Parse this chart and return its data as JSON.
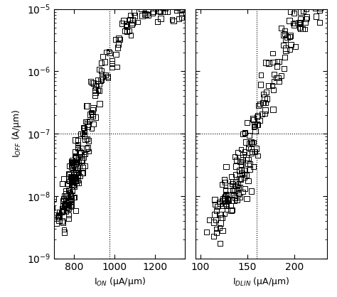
{
  "left_x_label": "I$_{ON}$ (μA/μm)",
  "right_x_label": "I$_{DLIN}$ (μA/μm)",
  "y_label": "I$_{OFF}$ (A/μm)",
  "left_xlim": [
    700,
    1350
  ],
  "right_xlim": [
    95,
    235
  ],
  "ylim": [
    1e-09,
    1e-05
  ],
  "left_hline": 1e-07,
  "left_vline": 975,
  "right_hline": 1e-07,
  "right_vline": 160,
  "background_color": "#ffffff",
  "left_x_ticks": [
    800,
    1000,
    1200
  ],
  "right_x_ticks": [
    100,
    150,
    200
  ],
  "left_data_x": [
    720,
    730,
    735,
    740,
    745,
    750,
    752,
    755,
    757,
    758,
    760,
    762,
    764,
    765,
    767,
    768,
    770,
    772,
    774,
    776,
    778,
    780,
    782,
    784,
    786,
    788,
    790,
    792,
    794,
    796,
    798,
    800,
    802,
    804,
    806,
    808,
    810,
    812,
    814,
    816,
    818,
    820,
    822,
    824,
    826,
    828,
    830,
    833,
    836,
    840,
    844,
    848,
    852,
    856,
    860,
    865,
    870,
    876,
    882,
    888,
    895,
    902,
    910,
    918,
    928,
    938,
    948,
    960,
    972,
    984,
    998,
    1012,
    1026,
    1040,
    1055,
    1070,
    1086,
    1102,
    1118,
    1135,
    1152,
    1170,
    1188,
    1206,
    1224,
    1242,
    1260,
    1278,
    1296,
    1310,
    1322,
    1330,
    1338
  ],
  "left_data_y": [
    3.5e-09,
    4e-09,
    4.5e-09,
    5e-09,
    5.5e-09,
    6e-09,
    5.5e-09,
    6.5e-09,
    7e-09,
    6.5e-09,
    7.2e-09,
    7.8e-09,
    8.2e-09,
    8.8e-09,
    9.2e-09,
    9.8e-09,
    1e-08,
    1.1e-08,
    1.15e-08,
    1.2e-08,
    1.3e-08,
    1.35e-08,
    1.4e-08,
    1.5e-08,
    1.55e-08,
    1.6e-08,
    1.7e-08,
    1.75e-08,
    1.8e-08,
    1.9e-08,
    2e-08,
    2.1e-08,
    2.2e-08,
    2.3e-08,
    2.4e-08,
    2.5e-08,
    2.6e-08,
    2.7e-08,
    2.8e-08,
    3e-08,
    3.2e-08,
    3.5e-08,
    3.8e-08,
    4e-08,
    4.3e-08,
    4.6e-08,
    5e-08,
    5.5e-08,
    6e-08,
    7e-08,
    7.8e-08,
    8.5e-08,
    9.5e-08,
    1.1e-07,
    1.3e-07,
    1.5e-07,
    1.8e-07,
    2.1e-07,
    2.5e-07,
    3e-07,
    3.6e-07,
    4.3e-07,
    5.1e-07,
    6.2e-07,
    7.5e-07,
    9e-07,
    1.1e-06,
    1.35e-06,
    1.6e-06,
    1.9e-06,
    2.3e-06,
    2.8e-06,
    3.4e-06,
    4.1e-06,
    4.9e-06,
    5.8e-06,
    6.7e-06,
    7.5e-06,
    8.2e-06,
    8.8e-06,
    9.2e-06,
    9.5e-06,
    9.7e-06,
    9.8e-06,
    9.85e-06,
    9.88e-06,
    9.9e-06,
    9.92e-06,
    9.94e-06,
    9.95e-06,
    9.96e-06,
    9.97e-06,
    9.98e-06
  ],
  "right_data_x": [
    113,
    116,
    119,
    121,
    122,
    123,
    124,
    125,
    126,
    127,
    128,
    129,
    130,
    131,
    132,
    133,
    134,
    135,
    136,
    137,
    138,
    139,
    140,
    141,
    142,
    143,
    144,
    145,
    146,
    147,
    148,
    149,
    150,
    151,
    152,
    153,
    154,
    155,
    156,
    157,
    158,
    159,
    160,
    162,
    164,
    166,
    168,
    170,
    172,
    174,
    176,
    178,
    180,
    182,
    185,
    188,
    191,
    194,
    197,
    200,
    203,
    206,
    209,
    212,
    215,
    218,
    221,
    224,
    227,
    230
  ],
  "right_data_y": [
    2.5e-09,
    3.2e-09,
    4e-09,
    4.8e-09,
    5.5e-09,
    6e-09,
    6.5e-09,
    7e-09,
    7.5e-09,
    8e-09,
    8.5e-09,
    9e-09,
    9.5e-09,
    1e-08,
    1.05e-08,
    1.1e-08,
    1.2e-08,
    1.3e-08,
    1.4e-08,
    1.5e-08,
    1.6e-08,
    1.7e-08,
    1.8e-08,
    2e-08,
    2.2e-08,
    2.4e-08,
    2.6e-08,
    2.8e-08,
    3e-08,
    3.3e-08,
    3.6e-08,
    4e-08,
    4.5e-08,
    5e-08,
    5.5e-08,
    6.2e-08,
    7e-08,
    8e-08,
    9.2e-08,
    1.05e-07,
    1.2e-07,
    1.4e-07,
    1.6e-07,
    2e-07,
    2.5e-07,
    3.1e-07,
    3.8e-07,
    4.6e-07,
    5.6e-07,
    6.8e-07,
    8.2e-07,
    1e-06,
    1.2e-06,
    1.5e-06,
    1.9e-06,
    2.3e-06,
    2.8e-06,
    3.4e-06,
    4.1e-06,
    4.9e-06,
    5.8e-06,
    6.7e-06,
    7.5e-06,
    8.2e-06,
    8.8e-06,
    9.2e-06,
    9.5e-06,
    9.7e-06,
    9.85e-06,
    9.95e-06
  ]
}
